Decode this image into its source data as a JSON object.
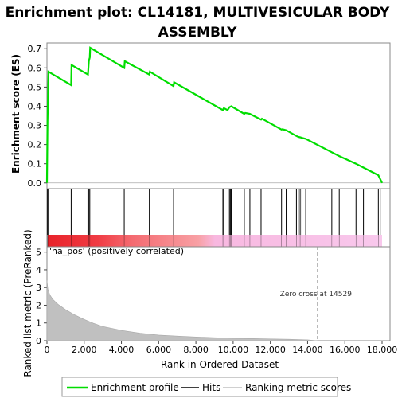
{
  "chart_data": {
    "type": "line",
    "title_line1": "Enrichment plot: CL14181, MULTIVESICULAR BODY",
    "title_line2": "ASSEMBLY",
    "xlabel": "Rank in Ordered Dataset",
    "es_panel": {
      "ylabel": "Enrichment score (ES)",
      "ylim": [
        -0.03,
        0.73
      ],
      "yticks": [
        "0.0",
        "0.1",
        "0.2",
        "0.3",
        "0.4",
        "0.5",
        "0.6",
        "0.7"
      ],
      "ytick_values": [
        0.0,
        0.1,
        0.2,
        0.3,
        0.4,
        0.5,
        0.6,
        0.7
      ],
      "line_color": "#00dd00",
      "series_name": "Enrichment profile",
      "x": [
        0,
        30,
        80,
        1300,
        1320,
        2200,
        2250,
        2300,
        2320,
        4150,
        4180,
        5500,
        5530,
        6800,
        6830,
        9450,
        9500,
        9700,
        9800,
        9900,
        10600,
        10650,
        10900,
        11500,
        11550,
        12600,
        12650,
        12850,
        13400,
        13500,
        13600,
        13700,
        13900,
        15300,
        15700,
        16600,
        17000,
        17800,
        17900,
        18000
      ],
      "y": [
        0.0,
        0.32,
        0.58,
        0.51,
        0.615,
        0.565,
        0.635,
        0.655,
        0.705,
        0.6,
        0.635,
        0.565,
        0.58,
        0.505,
        0.525,
        0.38,
        0.39,
        0.38,
        0.395,
        0.4,
        0.36,
        0.365,
        0.36,
        0.33,
        0.335,
        0.278,
        0.28,
        0.275,
        0.245,
        0.24,
        0.238,
        0.235,
        0.23,
        0.16,
        0.14,
        0.1,
        0.08,
        0.04,
        0.02,
        0.0
      ]
    },
    "hits": [
      30,
      80,
      1300,
      2200,
      2250,
      2300,
      4150,
      5500,
      6800,
      9450,
      9500,
      9800,
      9850,
      9900,
      10600,
      10900,
      11500,
      12600,
      12850,
      13400,
      13500,
      13600,
      13700,
      13900,
      15300,
      15700,
      16600,
      17000,
      17800,
      17900
    ],
    "metric_panel": {
      "ylabel": "Ranked list metric (PreRanked)",
      "ylim": [
        0,
        5.3
      ],
      "yticks": [
        "0",
        "1",
        "2",
        "3",
        "4",
        "5"
      ],
      "ytick_values": [
        0,
        1,
        2,
        3,
        4,
        5
      ],
      "fill_color": "#c0c0c0",
      "x": [
        0,
        50,
        150,
        300,
        600,
        1000,
        1500,
        2000,
        2500,
        3000,
        4000,
        5000,
        6000,
        7000,
        8000,
        9000,
        10000,
        11000,
        12000,
        13000,
        14000,
        14529,
        14530
      ],
      "y": [
        3.4,
        2.9,
        2.6,
        2.35,
        2.05,
        1.75,
        1.45,
        1.2,
        0.98,
        0.8,
        0.58,
        0.42,
        0.32,
        0.26,
        0.21,
        0.17,
        0.14,
        0.12,
        0.1,
        0.08,
        0.05,
        0.0,
        0.0
      ],
      "pos_label": "'na_pos' (positively correlated)",
      "zero_cross_label": "Zero cross at 14529",
      "zero_cross": 14529
    },
    "xlim": [
      0,
      18000
    ],
    "xticks": [
      "0",
      "2,000",
      "4,000",
      "6,000",
      "8,000",
      "10,000",
      "12,000",
      "14,000",
      "16,000",
      "18,000"
    ],
    "xtick_values": [
      0,
      2000,
      4000,
      6000,
      8000,
      10000,
      12000,
      14000,
      16000,
      18000
    ],
    "legend": {
      "items": [
        "Enrichment profile",
        "Hits",
        "Ranking metric scores"
      ],
      "placement": "bottom"
    }
  }
}
